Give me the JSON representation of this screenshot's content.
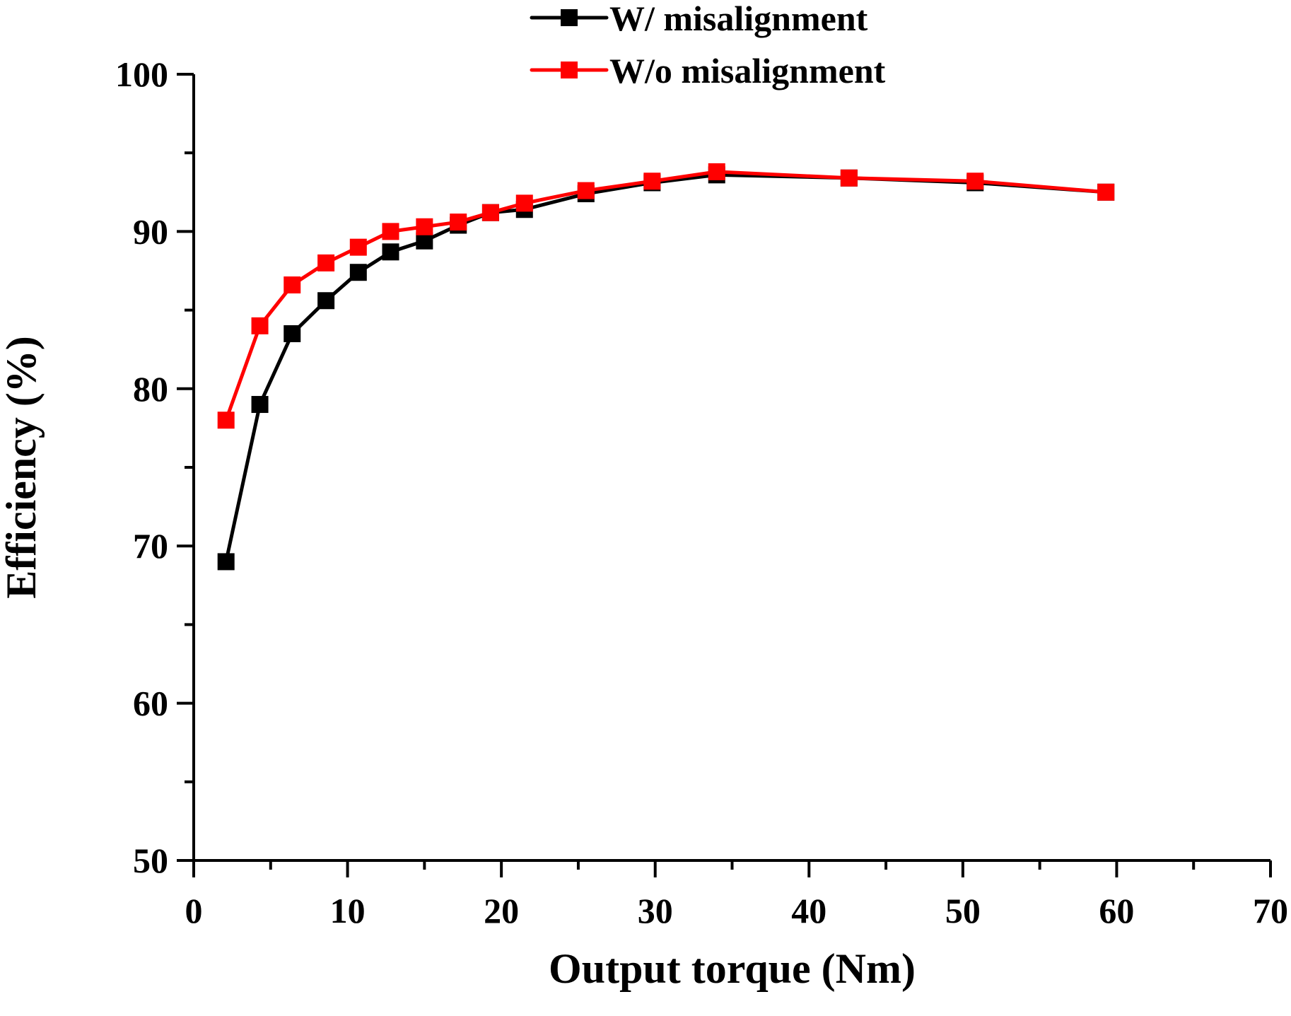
{
  "chart_data": {
    "type": "line",
    "title": "",
    "xlabel": "Output torque (Nm)",
    "ylabel": "Efficiency (%)",
    "xlim": [
      0,
      70
    ],
    "ylim": [
      50,
      100
    ],
    "xticks": [
      0,
      10,
      20,
      30,
      40,
      50,
      60,
      70
    ],
    "yticks": [
      50,
      60,
      70,
      80,
      90,
      100
    ],
    "xtick_labels": [
      "0",
      "10",
      "20",
      "30",
      "40",
      "50",
      "60",
      "70"
    ],
    "ytick_labels": [
      "50",
      "60",
      "70",
      "80",
      "90",
      "100"
    ],
    "grid": false,
    "legend_position": "top-center",
    "marker": "square",
    "series": [
      {
        "name": "W/ misalignment",
        "color": "#000000",
        "x": [
          2.1,
          4.3,
          6.4,
          8.6,
          10.7,
          12.8,
          15.0,
          17.2,
          19.3,
          21.5,
          25.5,
          29.8,
          34.0,
          42.6,
          50.8,
          59.3
        ],
        "values": [
          69.0,
          79.0,
          83.5,
          85.6,
          87.4,
          88.7,
          89.4,
          90.4,
          91.2,
          91.4,
          92.4,
          93.1,
          93.6,
          93.4,
          93.1,
          92.5
        ]
      },
      {
        "name": "W/o misalignment",
        "color": "#ff0000",
        "x": [
          2.1,
          4.3,
          6.4,
          8.6,
          10.7,
          12.8,
          15.0,
          17.2,
          19.3,
          21.5,
          25.5,
          29.8,
          34.0,
          42.6,
          50.8,
          59.3
        ],
        "values": [
          78.0,
          84.0,
          86.6,
          88.0,
          89.0,
          90.0,
          90.3,
          90.6,
          91.2,
          91.8,
          92.6,
          93.2,
          93.8,
          93.4,
          93.2,
          92.5
        ]
      }
    ]
  }
}
